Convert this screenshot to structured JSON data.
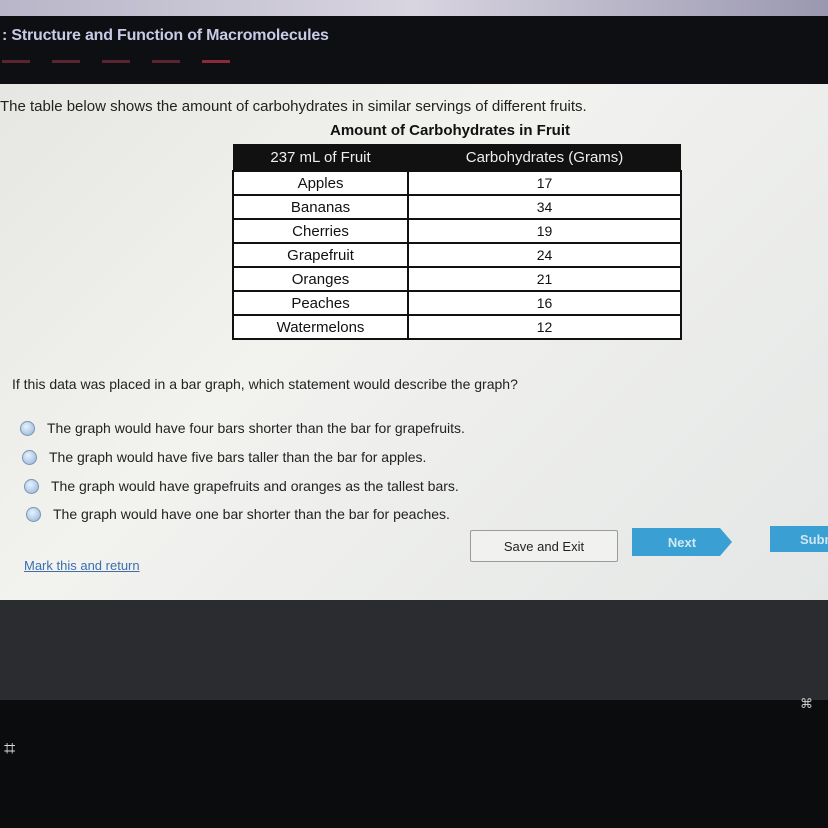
{
  "header": {
    "title": ": Structure and Function of Macromolecules"
  },
  "question": {
    "intro": "The table below shows the amount of carbohydrates in similar servings of different fruits.",
    "table_title": "Amount of Carbohydrates in Fruit",
    "columns": [
      "237 mL of Fruit",
      "Carbohydrates (Grams)"
    ],
    "rows": [
      [
        "Apples",
        "17"
      ],
      [
        "Bananas",
        "34"
      ],
      [
        "Cherries",
        "19"
      ],
      [
        "Grapefruit",
        "24"
      ],
      [
        "Oranges",
        "21"
      ],
      [
        "Peaches",
        "16"
      ],
      [
        "Watermelons",
        "12"
      ]
    ],
    "prompt": "If this data was placed in a bar graph, which statement would describe the graph?",
    "options": [
      "The graph would have four bars shorter than the bar for grapefruits.",
      "The graph would have five bars taller than the bar for apples.",
      "The graph would have grapefruits and oranges as the tallest bars.",
      "The graph would have one bar shorter than the bar for peaches."
    ]
  },
  "actions": {
    "save_exit": "Save and Exit",
    "next": "Next",
    "submit": "Subm",
    "mark_return": "Mark this and return"
  },
  "colors": {
    "button_blue": "#3aa0d4",
    "link": "#3d6fb0"
  }
}
